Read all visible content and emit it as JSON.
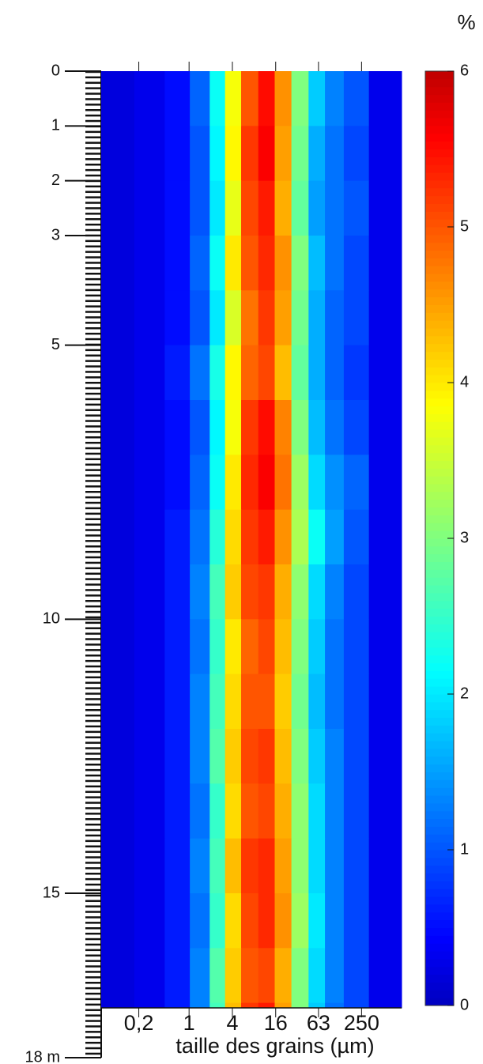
{
  "chart_data": {
    "type": "heatmap",
    "xlabel": "taille des grains (µm)",
    "colorbar_label": "%",
    "x": [
      0.1,
      0.3,
      0.7,
      1.5,
      2.5,
      4,
      7,
      12,
      20,
      35,
      60,
      100,
      200,
      500
    ],
    "y": [
      0,
      1,
      2,
      3,
      4,
      5,
      6,
      7,
      8,
      9,
      10,
      11,
      12,
      13,
      14,
      15,
      16,
      17
    ],
    "z": [
      [
        0.2,
        0.3,
        0.5,
        1.1,
        2.2,
        3.8,
        5.0,
        5.5,
        4.6,
        3.0,
        1.8,
        1.3,
        1.0,
        0.3
      ],
      [
        0.2,
        0.3,
        0.5,
        1.0,
        2.1,
        3.9,
        5.2,
        5.6,
        4.5,
        2.9,
        1.6,
        1.2,
        0.9,
        0.3
      ],
      [
        0.2,
        0.3,
        0.5,
        1.0,
        2.0,
        3.7,
        5.1,
        5.4,
        4.4,
        2.8,
        1.5,
        1.2,
        1.0,
        0.3
      ],
      [
        0.2,
        0.3,
        0.5,
        1.1,
        2.2,
        4.0,
        5.0,
        5.3,
        4.6,
        3.0,
        1.7,
        1.2,
        0.9,
        0.3
      ],
      [
        0.2,
        0.3,
        0.5,
        1.0,
        2.0,
        3.6,
        4.8,
        5.2,
        4.5,
        2.9,
        1.6,
        1.1,
        0.9,
        0.3
      ],
      [
        0.2,
        0.3,
        0.6,
        1.2,
        2.3,
        3.9,
        4.9,
        5.1,
        4.3,
        2.8,
        1.6,
        1.1,
        0.8,
        0.3
      ],
      [
        0.2,
        0.3,
        0.5,
        1.0,
        2.1,
        3.8,
        5.2,
        5.5,
        4.7,
        3.0,
        1.7,
        1.2,
        0.9,
        0.3
      ],
      [
        0.2,
        0.3,
        0.5,
        1.1,
        2.2,
        4.0,
        5.3,
        5.6,
        4.8,
        3.2,
        1.9,
        1.4,
        1.1,
        0.3
      ],
      [
        0.2,
        0.3,
        0.6,
        1.2,
        2.4,
        4.1,
        5.2,
        5.4,
        4.6,
        3.3,
        2.2,
        1.5,
        1.0,
        0.3
      ],
      [
        0.2,
        0.3,
        0.6,
        1.3,
        2.6,
        4.2,
        5.1,
        5.2,
        4.4,
        3.1,
        1.9,
        1.3,
        0.9,
        0.3
      ],
      [
        0.2,
        0.3,
        0.6,
        1.2,
        2.5,
        4.0,
        4.9,
        5.1,
        4.3,
        3.0,
        1.8,
        1.2,
        0.9,
        0.3
      ],
      [
        0.2,
        0.3,
        0.6,
        1.3,
        2.6,
        4.1,
        5.0,
        5.0,
        4.2,
        2.9,
        1.7,
        1.2,
        0.9,
        0.3
      ],
      [
        0.2,
        0.3,
        0.6,
        1.3,
        2.7,
        4.2,
        5.1,
        5.2,
        4.3,
        3.0,
        1.8,
        1.3,
        0.9,
        0.3
      ],
      [
        0.2,
        0.3,
        0.6,
        1.2,
        2.5,
        4.1,
        5.0,
        5.1,
        4.4,
        3.1,
        1.9,
        1.3,
        0.9,
        0.3
      ],
      [
        0.2,
        0.3,
        0.6,
        1.3,
        2.6,
        4.3,
        5.2,
        5.3,
        4.5,
        3.1,
        1.9,
        1.3,
        0.9,
        0.3
      ],
      [
        0.2,
        0.3,
        0.6,
        1.2,
        2.5,
        4.1,
        5.1,
        5.3,
        4.6,
        3.2,
        2.0,
        1.3,
        0.9,
        0.3
      ],
      [
        0.2,
        0.3,
        0.6,
        1.3,
        2.7,
        4.2,
        5.0,
        5.1,
        4.4,
        3.0,
        1.9,
        1.3,
        0.9,
        0.3
      ],
      [
        0.2,
        0.3,
        0.6,
        1.3,
        2.6,
        4.3,
        5.2,
        5.4,
        4.5,
        3.0,
        1.8,
        1.2,
        0.9,
        0.3
      ]
    ],
    "xscale": "log",
    "xlim": [
      0.06,
      900
    ],
    "xticks": [
      {
        "value": 0.2,
        "label": "0,2"
      },
      1,
      4,
      16,
      63,
      250
    ],
    "ylim": [
      0,
      18
    ],
    "yticks": [
      0,
      1,
      2,
      3,
      5,
      10,
      15,
      {
        "value": 18,
        "label": "18 m"
      }
    ],
    "clim": [
      0,
      6
    ],
    "cticks": [
      0,
      1,
      2,
      3,
      4,
      5,
      6
    ],
    "colormap": "jet"
  }
}
